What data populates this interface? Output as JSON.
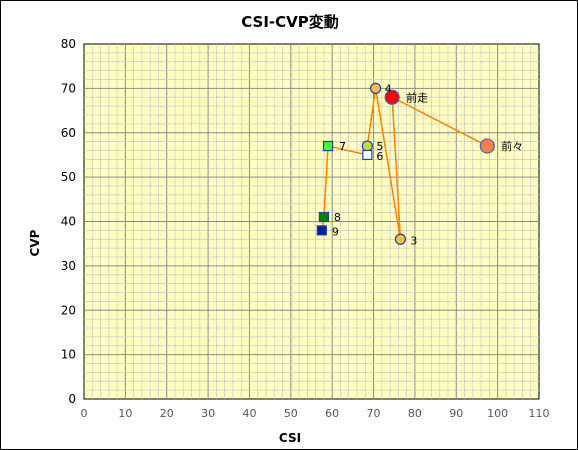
{
  "chart_data": {
    "type": "scatter",
    "title": "CSI-CVP変動",
    "xlabel": "CSI",
    "ylabel": "CVP",
    "xlim": [
      0,
      110
    ],
    "ylim": [
      0,
      80
    ],
    "xticks": [
      0,
      10,
      20,
      30,
      40,
      50,
      60,
      70,
      80,
      90,
      100,
      110
    ],
    "yticks": [
      0,
      10,
      20,
      30,
      40,
      50,
      60,
      70,
      80
    ],
    "grid": true,
    "background_color": "#ffffc0",
    "line_color": "#ff8000",
    "path_order": [
      "前々",
      "前走",
      "3",
      "4",
      "5",
      "6",
      "7",
      "8",
      "9"
    ],
    "points": [
      {
        "label": "前々",
        "x": 97.5,
        "y": 57,
        "marker": "circle-large",
        "fill": "#ff8040",
        "stroke": "#4060c0"
      },
      {
        "label": "前走",
        "x": 74.5,
        "y": 68,
        "marker": "circle-large",
        "fill": "#ff0000",
        "stroke": "#4060c0"
      },
      {
        "label": "3",
        "x": 76.5,
        "y": 36,
        "marker": "circle",
        "fill": "#ffc040",
        "stroke": "#2040a0"
      },
      {
        "label": "4",
        "x": 70.5,
        "y": 70,
        "marker": "circle",
        "fill": "#ffc040",
        "stroke": "#2040a0"
      },
      {
        "label": "5",
        "x": 68.5,
        "y": 57,
        "marker": "circle",
        "fill": "#c0e040",
        "stroke": "#2040a0"
      },
      {
        "label": "6",
        "x": 68.5,
        "y": 55,
        "marker": "square",
        "fill": "#ffffff",
        "stroke": "#2040c0"
      },
      {
        "label": "7",
        "x": 59,
        "y": 57,
        "marker": "square",
        "fill": "#40ff40",
        "stroke": "#2040a0"
      },
      {
        "label": "8",
        "x": 58,
        "y": 41,
        "marker": "square",
        "fill": "#008000",
        "stroke": "#2040a0"
      },
      {
        "label": "9",
        "x": 57.5,
        "y": 38,
        "marker": "square",
        "fill": "#0020a0",
        "stroke": "#2040a0"
      }
    ]
  }
}
